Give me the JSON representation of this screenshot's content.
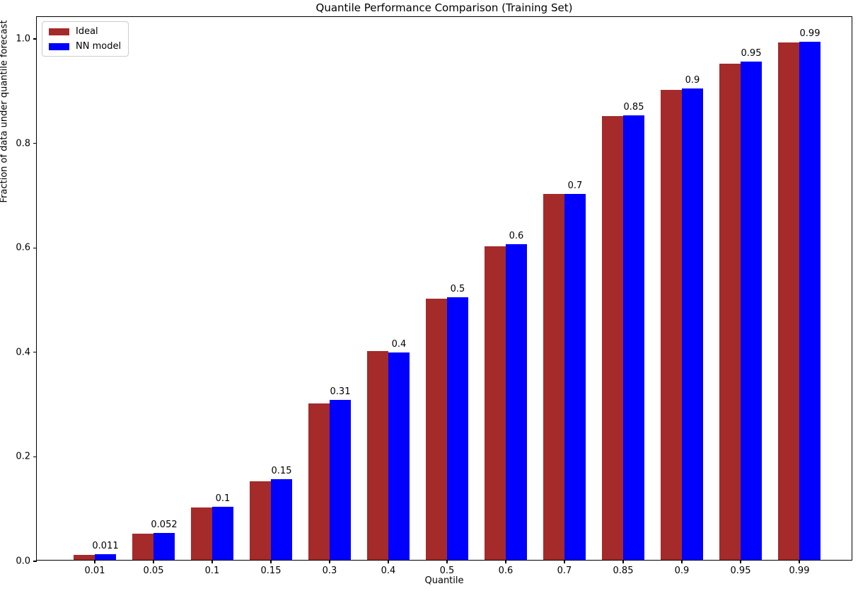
{
  "figure": {
    "title": "Quantile Performance Comparison (Training Set)",
    "xlabel": "Quantile",
    "ylabel": "Fraction of data under quantile forecast"
  },
  "legend": {
    "items": [
      {
        "label": "Ideal",
        "color": "#a52a2a"
      },
      {
        "label": "NN model",
        "color": "#0000ff"
      }
    ]
  },
  "chart_data": {
    "type": "bar",
    "title": "Quantile Performance Comparison (Training Set)",
    "xlabel": "Quantile",
    "ylabel": "Fraction of data under quantile forecast",
    "categories": [
      "0.01",
      "0.05",
      "0.1",
      "0.15",
      "0.3",
      "0.4",
      "0.5",
      "0.6",
      "0.7",
      "0.85",
      "0.9",
      "0.95",
      "0.99"
    ],
    "series": [
      {
        "name": "Ideal",
        "color": "#a52a2a",
        "values": [
          0.01,
          0.05,
          0.1,
          0.15,
          0.3,
          0.4,
          0.5,
          0.6,
          0.7,
          0.85,
          0.9,
          0.95,
          0.99
        ]
      },
      {
        "name": "NN model",
        "color": "#0000ff",
        "values": [
          0.011,
          0.052,
          0.102,
          0.154,
          0.306,
          0.397,
          0.503,
          0.604,
          0.7,
          0.851,
          0.903,
          0.954,
          0.992
        ],
        "labels": [
          "0.011",
          "0.052",
          "0.1",
          "0.15",
          "0.31",
          "0.4",
          "0.5",
          "0.6",
          "0.7",
          "0.85",
          "0.9",
          "0.95",
          "0.99"
        ]
      }
    ],
    "ylim": [
      0.0,
      1.04
    ],
    "yticks": [
      "0.0",
      "0.2",
      "0.4",
      "0.6",
      "0.8",
      "1.0"
    ],
    "grid": false,
    "legend_position": "upper left",
    "bar_value_labels_on": "NN model"
  }
}
